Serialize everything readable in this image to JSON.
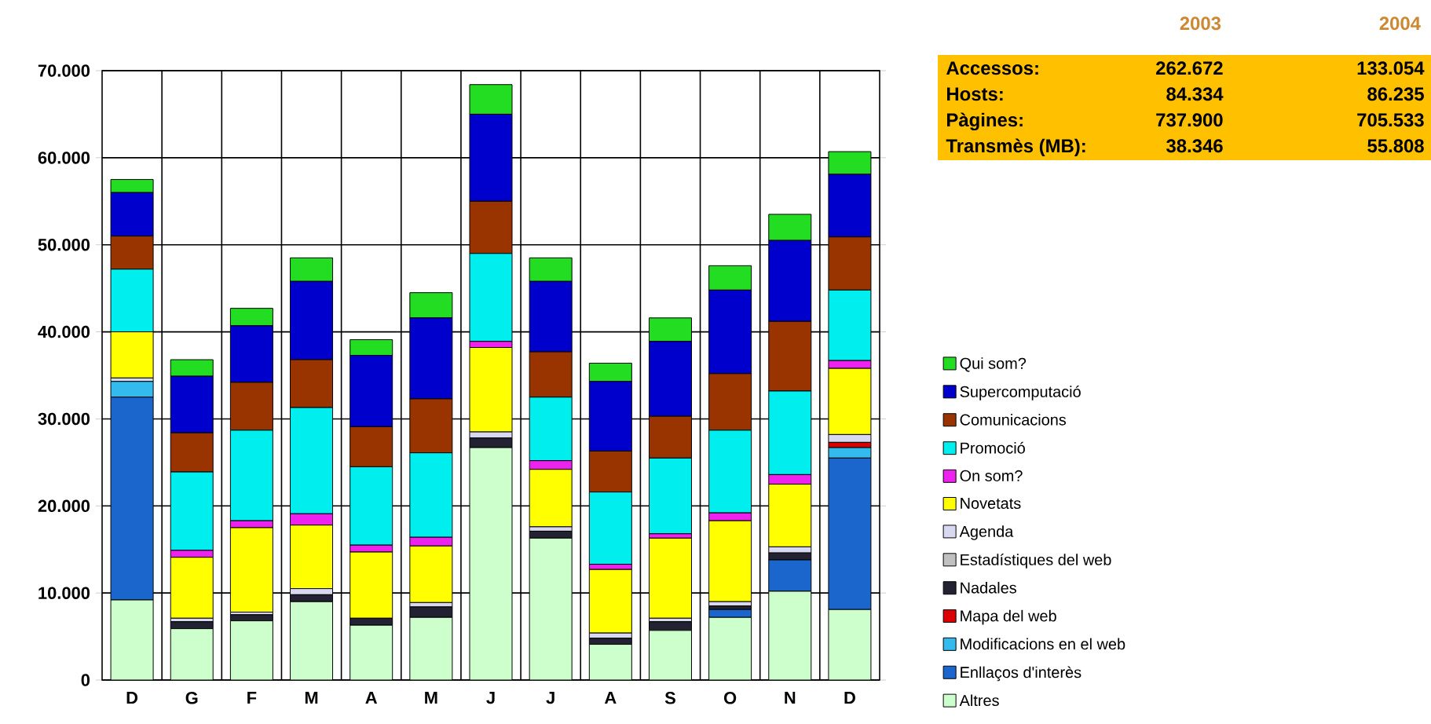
{
  "chart_data": {
    "type": "bar",
    "stacked": true,
    "legend": "right",
    "grid": true,
    "categories": [
      "D",
      "G",
      "F",
      "M",
      "A",
      "M",
      "J",
      "J",
      "A",
      "S",
      "O",
      "N",
      "D"
    ],
    "ylim": [
      0,
      70000
    ],
    "yticks": [
      {
        "value": 0,
        "label": "0"
      },
      {
        "value": 10000,
        "label": "10.000"
      },
      {
        "value": 20000,
        "label": "20.000"
      },
      {
        "value": 30000,
        "label": "30.000"
      },
      {
        "value": 40000,
        "label": "40.000"
      },
      {
        "value": 50000,
        "label": "50.000"
      },
      {
        "value": 60000,
        "label": "60.000"
      },
      {
        "value": 70000,
        "label": "70.000"
      }
    ],
    "series": [
      {
        "name": "Altres",
        "color": "#ccffcc",
        "values": [
          9200,
          5900,
          6800,
          9000,
          6300,
          7200,
          26700,
          16300,
          4100,
          5700,
          7200,
          10200,
          8100
        ]
      },
      {
        "name": "Enllaços d'interès",
        "color": "#1a66cc",
        "values": [
          23300,
          0,
          0,
          0,
          0,
          0,
          0,
          0,
          0,
          0,
          900,
          3600,
          17400
        ]
      },
      {
        "name": "Modificacions en el web",
        "color": "#33bbee",
        "values": [
          1800,
          0,
          0,
          0,
          0,
          0,
          0,
          0,
          0,
          0,
          0,
          0,
          1200
        ]
      },
      {
        "name": "Mapa del web",
        "color": "#dd0000",
        "values": [
          0,
          0,
          0,
          0,
          0,
          0,
          0,
          0,
          0,
          0,
          0,
          0,
          600
        ]
      },
      {
        "name": "Nadales",
        "color": "#222233",
        "values": [
          0,
          800,
          700,
          800,
          800,
          1200,
          1100,
          800,
          700,
          1000,
          400,
          800,
          0
        ]
      },
      {
        "name": "Estadístiques del web",
        "color": "#c0c0c0",
        "values": [
          0,
          0,
          0,
          0,
          0,
          0,
          0,
          0,
          0,
          0,
          0,
          0,
          0
        ]
      },
      {
        "name": "Agenda",
        "color": "#d8d8f0",
        "values": [
          400,
          400,
          300,
          700,
          0,
          500,
          700,
          500,
          600,
          400,
          500,
          700,
          900
        ]
      },
      {
        "name": "Novetats",
        "color": "#ffff00",
        "values": [
          5300,
          7000,
          9700,
          7300,
          7600,
          6500,
          9700,
          6600,
          7300,
          9200,
          9300,
          7200,
          7600
        ]
      },
      {
        "name": "On som?",
        "color": "#ee22ee",
        "values": [
          0,
          800,
          800,
          1300,
          800,
          1000,
          700,
          1000,
          600,
          500,
          900,
          1100,
          900
        ]
      },
      {
        "name": "Promoció",
        "color": "#00eeee",
        "values": [
          7200,
          9000,
          10400,
          12200,
          9000,
          9700,
          10100,
          7300,
          8300,
          8700,
          9500,
          9600,
          8100
        ]
      },
      {
        "name": "Comunicacions",
        "color": "#993300",
        "values": [
          3800,
          4500,
          5500,
          5500,
          4600,
          6200,
          6000,
          5200,
          4700,
          4800,
          6500,
          8000,
          6100
        ]
      },
      {
        "name": "Supercomputació",
        "color": "#0000cc",
        "values": [
          5000,
          6500,
          6500,
          9000,
          8200,
          9300,
          10000,
          8100,
          8000,
          8600,
          9600,
          9300,
          7200
        ]
      },
      {
        "name": "Qui som?",
        "color": "#22dd22",
        "values": [
          1500,
          1900,
          2000,
          2700,
          1800,
          2900,
          3400,
          2700,
          2100,
          2700,
          2800,
          3000,
          2600
        ]
      }
    ],
    "annotations": [
      "2003",
      "2004",
      "Accessos:",
      "262.672",
      "133.054",
      "Hosts:",
      "84.334",
      "86.235",
      "Pàgines:",
      "737.900",
      "705.533",
      "Transmès (MB):",
      "38.346",
      "55.808"
    ]
  }
}
